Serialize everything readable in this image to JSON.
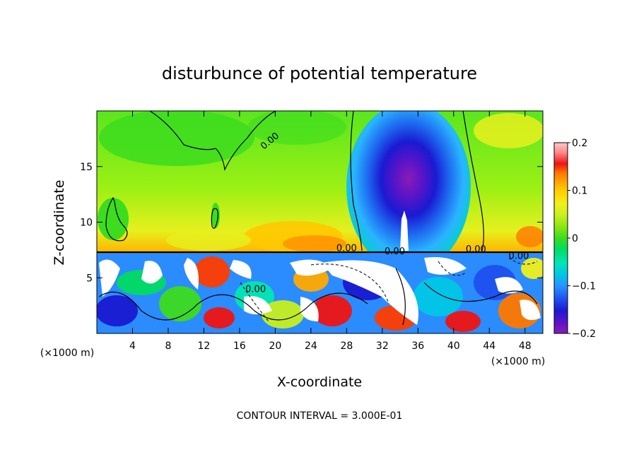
{
  "chart_data": {
    "type": "heatmap",
    "title": "disturbunce of potential temperature",
    "xlabel": "X-coordinate",
    "ylabel": "Z-coordinate",
    "x_unit_left": "(×1000 m)",
    "x_unit_right": "(×1000 m)",
    "footer": "CONTOUR INTERVAL = 3.000E-01",
    "xlim": [
      0,
      50
    ],
    "ylim": [
      0,
      20
    ],
    "x_ticks": [
      4,
      8,
      12,
      16,
      20,
      24,
      28,
      32,
      36,
      40,
      44,
      48
    ],
    "x_tick_labels": [
      "4",
      "8",
      "12",
      "16",
      "20",
      "24",
      "28",
      "32",
      "36",
      "40",
      "44",
      "48"
    ],
    "y_ticks": [
      5,
      10,
      15
    ],
    "y_tick_labels": [
      "5",
      "10",
      "15"
    ],
    "colorbar": {
      "range": [
        -0.2,
        0.2
      ],
      "tick_labels": [
        {
          "value": 0.2,
          "label": "0.2"
        },
        {
          "value": 0.1,
          "label": "0.1"
        },
        {
          "value": 0.0,
          "label": "0"
        },
        {
          "value": -0.1,
          "label": "−0.1"
        },
        {
          "value": -0.2,
          "label": "−0.2"
        }
      ],
      "colors": [
        "#8a1cb4",
        "#5a14c8",
        "#1a1ad2",
        "#1e50f0",
        "#2894ff",
        "#00c8e6",
        "#00e6b4",
        "#00dc64",
        "#3cdc1e",
        "#8ce614",
        "#c8f01e",
        "#f0f01e",
        "#ffd200",
        "#ffaa00",
        "#ff7800",
        "#ff3c00",
        "#f01414",
        "#ff8c8c",
        "#ffc8c8"
      ]
    },
    "contour_labels": [
      {
        "x": 19.6,
        "z": 17.1,
        "text": "0.00",
        "rotate": -40
      },
      {
        "x": 28.0,
        "z": 7.4,
        "text": "0.00",
        "rotate": 0
      },
      {
        "x": 33.4,
        "z": 7.1,
        "text": "0.00",
        "rotate": 0
      },
      {
        "x": 42.5,
        "z": 7.3,
        "text": "0.00",
        "rotate": 0
      },
      {
        "x": 47.3,
        "z": 6.7,
        "text": "0.00",
        "rotate": 0
      },
      {
        "x": 17.8,
        "z": 3.7,
        "text": "0.00",
        "rotate": 0
      }
    ]
  }
}
